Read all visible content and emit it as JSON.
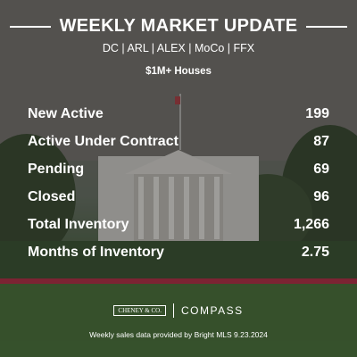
{
  "header": {
    "title": "WEEKLY MARKET UPDATE",
    "areas": "DC | ARL | ALEX | MoCo | FFX",
    "segment": "$1M+ Houses"
  },
  "stats": [
    {
      "label": "New Active",
      "value": "199"
    },
    {
      "label": "Active Under Contract",
      "value": "87"
    },
    {
      "label": "Pending",
      "value": "69"
    },
    {
      "label": "Closed",
      "value": "96"
    },
    {
      "label": "Total Inventory",
      "value": "1,266"
    },
    {
      "label": "Months of Inventory",
      "value": "2.75"
    }
  ],
  "footer": {
    "logo_left": "CHENEY & CO.",
    "logo_right": "COMPASS",
    "source": "Weekly sales data provided by Bright MLS 9.23.2024"
  },
  "colors": {
    "text": "#ffffff",
    "lawn": "#3f6a2e",
    "flowers": "#b0213a"
  }
}
